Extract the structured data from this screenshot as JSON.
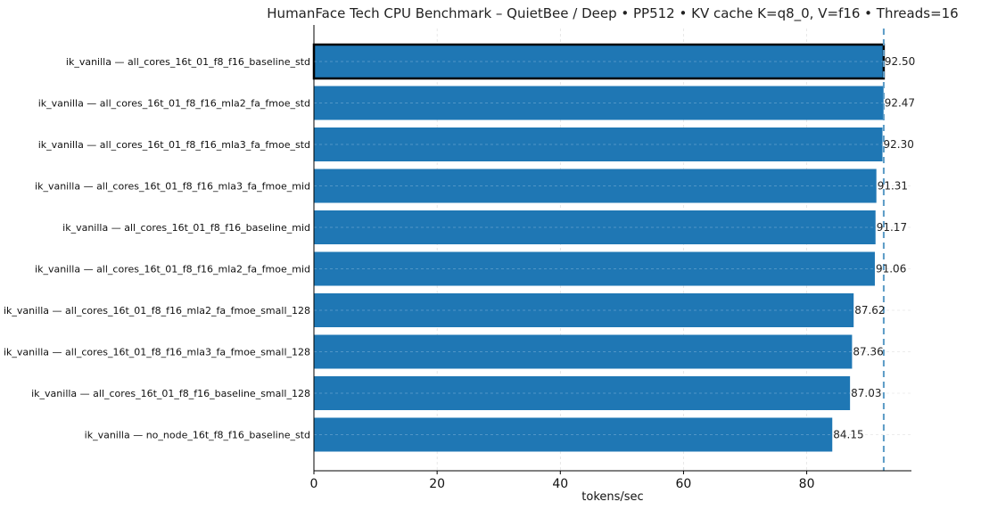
{
  "chart_data": {
    "type": "bar",
    "orientation": "horizontal",
    "title": "HumanFace Tech CPU Benchmark – QuietBee / Deep • PP512 • KV cache K=q8_0, V=f16 • Threads=16",
    "xlabel": "tokens/sec",
    "ylabel": "",
    "xlim": [
      0,
      97
    ],
    "xticks": [
      0,
      20,
      40,
      60,
      80
    ],
    "grid": true,
    "reference_line": 92.5,
    "highlight_index": 0,
    "categories": [
      "ik_vanilla — all_cores_16t_01_f8_f16_baseline_std",
      "ik_vanilla — all_cores_16t_01_f8_f16_mla2_fa_fmoe_std",
      "ik_vanilla — all_cores_16t_01_f8_f16_mla3_fa_fmoe_std",
      "ik_vanilla — all_cores_16t_01_f8_f16_mla3_fa_fmoe_mid",
      "ik_vanilla — all_cores_16t_01_f8_f16_baseline_mid",
      "ik_vanilla — all_cores_16t_01_f8_f16_mla2_fa_fmoe_mid",
      "ik_vanilla — all_cores_16t_01_f8_f16_mla2_fa_fmoe_small_128",
      "ik_vanilla — all_cores_16t_01_f8_f16_mla3_fa_fmoe_small_128",
      "ik_vanilla — all_cores_16t_01_f8_f16_baseline_small_128",
      "ik_vanilla — no_node_16t_f8_f16_baseline_std"
    ],
    "values": [
      92.5,
      92.47,
      92.3,
      91.31,
      91.17,
      91.06,
      87.62,
      87.36,
      87.03,
      84.15
    ],
    "value_labels": [
      "92.50",
      "92.47",
      "92.30",
      "91.31",
      "91.17",
      "91.06",
      "87.62",
      "87.36",
      "87.03",
      "84.15"
    ],
    "colors": {
      "bar": "#1f77b4",
      "highlight_edge": "#000000",
      "reference_line": "#5b9bc6",
      "grid": "#d9d9d9"
    }
  }
}
